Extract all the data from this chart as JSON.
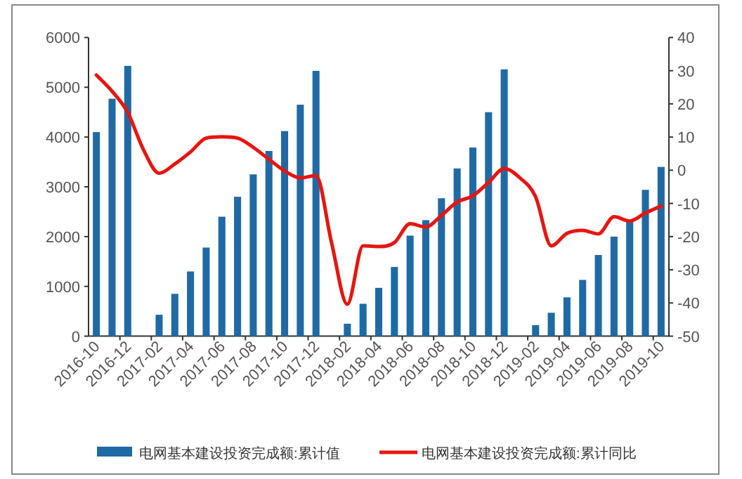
{
  "chart_data": {
    "type": "bar",
    "categories": [
      "2016-10",
      null,
      "2016-12",
      null,
      "2017-02",
      null,
      "2017-04",
      null,
      "2017-06",
      null,
      "2017-08",
      null,
      "2017-10",
      null,
      "2017-12",
      null,
      "2018-02",
      null,
      "2018-04",
      null,
      "2018-06",
      null,
      "2018-08",
      null,
      "2018-10",
      null,
      "2018-12",
      null,
      "2019-02",
      null,
      "2019-04",
      null,
      "2019-06",
      null,
      "2019-08",
      null,
      "2019-10"
    ],
    "series": [
      {
        "name": "电网基本建设投资完成额:累计值",
        "color": "#1f6aa5",
        "values": [
          4100,
          4770,
          5430,
          null,
          430,
          850,
          1300,
          1780,
          2400,
          2800,
          3250,
          3720,
          4120,
          4650,
          5330,
          null,
          250,
          650,
          970,
          1390,
          2020,
          2330,
          2770,
          3370,
          3790,
          4500,
          5360,
          null,
          220,
          470,
          780,
          1130,
          1630,
          2000,
          2330,
          2940,
          3400
        ]
      },
      {
        "name": "电网基本建设投资完成额:累计同比",
        "type": "line",
        "axis": "y2",
        "color": "#e8140f",
        "values": [
          28.7,
          23.8,
          17.4,
          6.2,
          -0.9,
          1.9,
          5.5,
          9.7,
          10.1,
          9.7,
          6.9,
          3.3,
          -0.2,
          -2.3,
          -1.6,
          -22,
          -40.4,
          -22.8,
          -23,
          -21.8,
          -16.1,
          -17.1,
          -13.6,
          -9.6,
          -7.7,
          -3.7,
          0.5,
          -2.3,
          -8,
          -22.8,
          -19,
          -18.1,
          -19.2,
          -14,
          -15.3,
          -12.9,
          -10.8
        ]
      }
    ],
    "ylim": [
      0,
      6000
    ],
    "yticks": [
      0,
      1000,
      2000,
      3000,
      4000,
      5000,
      6000
    ],
    "y2lim": [
      -50,
      40
    ],
    "y2ticks": [
      -50,
      -40,
      -30,
      -20,
      -10,
      0,
      10,
      20,
      30,
      40
    ],
    "legend": "bottom",
    "grid": false,
    "marker": "none",
    "line_style": "solid"
  }
}
